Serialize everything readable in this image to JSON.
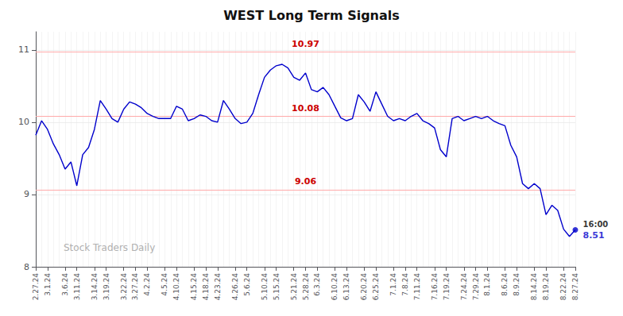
{
  "chart_data": {
    "type": "line",
    "title": "WEST Long Term Signals",
    "categories": [
      "2.27.24",
      null,
      "3.1.24",
      null,
      null,
      "3.6.24",
      null,
      "3.11.24",
      null,
      null,
      "3.14.24",
      null,
      "3.19.24",
      null,
      null,
      "3.22.24",
      null,
      "3.27.24",
      null,
      "4.2.24",
      null,
      null,
      "4.5.24",
      null,
      "4.10.24",
      null,
      null,
      "4.15.24",
      null,
      "4.18.24",
      null,
      "4.23.24",
      null,
      null,
      "4.26.24",
      null,
      "5.6.24",
      null,
      null,
      "5.10.24",
      null,
      "5.15.24",
      null,
      null,
      "5.21.24",
      null,
      "5.28.24",
      null,
      "6.3.24",
      null,
      null,
      "6.10.24",
      null,
      "6.13.24",
      null,
      null,
      "6.20.24",
      null,
      "6.25.24",
      null,
      null,
      "7.1.24",
      null,
      "7.8.24",
      null,
      "7.11.24",
      null,
      null,
      "7.16.24",
      null,
      "7.19.24",
      null,
      null,
      "7.24.24",
      null,
      "7.29.24",
      null,
      "8.1.24",
      null,
      null,
      "8.6.24",
      null,
      "8.9.24",
      null,
      null,
      "8.14.24",
      null,
      "8.19.24",
      null,
      null,
      "8.22.24",
      null,
      "8.27.24"
    ],
    "values": [
      9.82,
      10.02,
      9.9,
      9.7,
      9.55,
      9.35,
      9.45,
      9.12,
      9.55,
      9.65,
      9.9,
      10.3,
      10.18,
      10.05,
      10.0,
      10.18,
      10.28,
      10.25,
      10.2,
      10.12,
      10.08,
      10.05,
      10.05,
      10.05,
      10.22,
      10.18,
      10.02,
      10.05,
      10.1,
      10.08,
      10.02,
      10.0,
      10.3,
      10.18,
      10.05,
      9.98,
      10.0,
      10.12,
      10.38,
      10.62,
      10.72,
      10.78,
      10.8,
      10.75,
      10.62,
      10.58,
      10.68,
      10.45,
      10.42,
      10.48,
      10.38,
      10.22,
      10.06,
      10.02,
      10.05,
      10.38,
      10.28,
      10.15,
      10.42,
      10.25,
      10.08,
      10.02,
      10.05,
      10.02,
      10.08,
      10.12,
      10.02,
      9.98,
      9.92,
      9.62,
      9.52,
      10.05,
      10.08,
      10.02,
      10.05,
      10.08,
      10.05,
      10.08,
      10.02,
      9.98,
      9.95,
      9.68,
      9.52,
      9.15,
      9.08,
      9.15,
      9.08,
      8.72,
      8.85,
      8.78,
      8.52,
      8.42,
      8.51
    ],
    "color": "#0000cc",
    "ylim": [
      8.0,
      11.25
    ],
    "yticks": [
      8,
      9,
      10,
      11
    ],
    "grid": true,
    "reference_lines": [
      {
        "y": 10.97,
        "label": "10.97",
        "color": "#ffaaaa",
        "label_color": "#cc0000"
      },
      {
        "y": 10.08,
        "label": "10.08",
        "color": "#ffaaaa",
        "label_color": "#cc0000"
      },
      {
        "y": 9.06,
        "label": "9.06",
        "color": "#ffaaaa",
        "label_color": "#cc0000"
      }
    ],
    "last_point": {
      "label": "16:00",
      "value_label": "8.51"
    },
    "watermark": "Stock Traders Daily"
  }
}
